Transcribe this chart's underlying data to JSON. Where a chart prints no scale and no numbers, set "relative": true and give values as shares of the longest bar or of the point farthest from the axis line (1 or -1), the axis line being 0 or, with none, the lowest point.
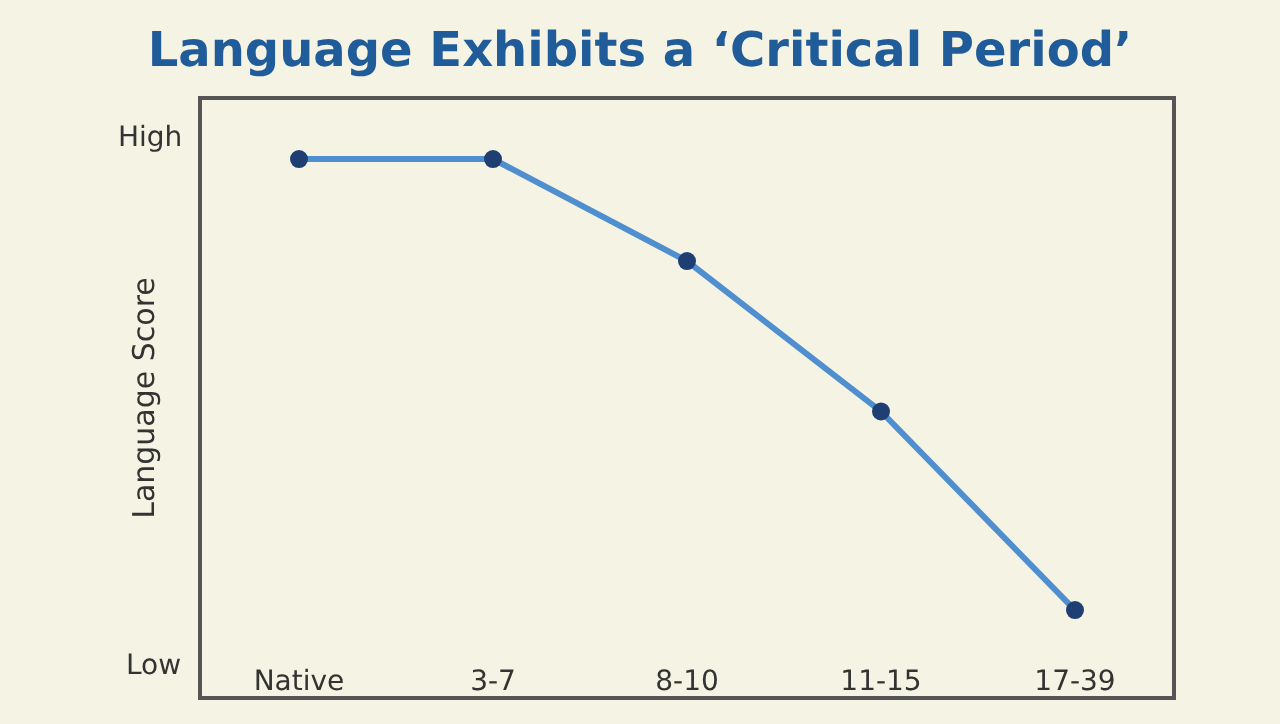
{
  "chart_data": {
    "type": "line",
    "title": "Language Exhibits a ‘Critical Period’",
    "ylabel": "Language Score",
    "categories": [
      "Native",
      "3-7",
      "8-10",
      "11-15",
      "17-39"
    ],
    "series": [
      {
        "color": "#4f8fd0",
        "values": [
          1,
          1,
          0.81,
          0.53,
          0.16
        ]
      }
    ],
    "relative": true,
    "annotations": [
      "High",
      "Low"
    ],
    "marker": "circle",
    "line_style": "solid",
    "grid": false
  }
}
